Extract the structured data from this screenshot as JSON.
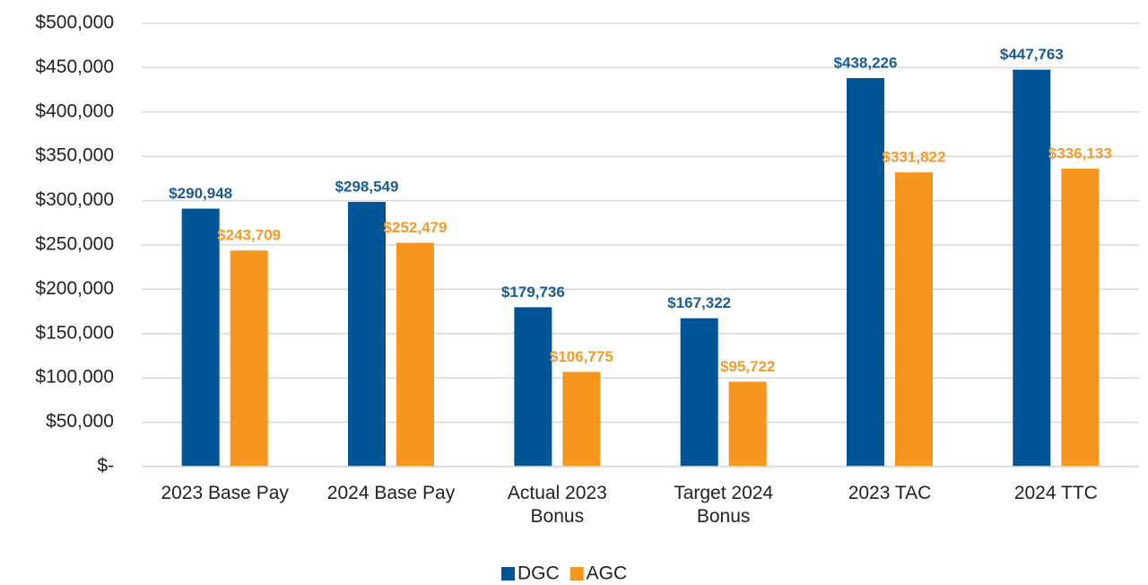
{
  "chart_data": {
    "type": "bar",
    "categories": [
      "2023 Base Pay",
      "2024 Base Pay",
      "Actual 2023 Bonus",
      "Target 2024 Bonus",
      "2023 TAC",
      "2024 TTC"
    ],
    "series": [
      {
        "name": "DGC",
        "color": "#005596",
        "label_color": "#1a5b96",
        "values": [
          290948,
          298549,
          179736,
          167322,
          438226,
          447763
        ],
        "value_labels": [
          "$290,948",
          "$298,549",
          "$179,736",
          "$167,322",
          "$438,226",
          "$447,763"
        ]
      },
      {
        "name": "AGC",
        "color": "#f7961f",
        "label_color": "#f59a2a",
        "values": [
          243709,
          252479,
          106775,
          95722,
          331822,
          336133
        ],
        "value_labels": [
          "$243,709",
          "$252,479",
          "$106,775",
          "$95,722",
          "$331,822",
          "$336,133"
        ]
      }
    ],
    "ylim": [
      0,
      500000
    ],
    "yticks": [
      {
        "value": 0,
        "label": "$-"
      },
      {
        "value": 50000,
        "label": "$50,000"
      },
      {
        "value": 100000,
        "label": "$100,000"
      },
      {
        "value": 150000,
        "label": "$150,000"
      },
      {
        "value": 200000,
        "label": "$200,000"
      },
      {
        "value": 250000,
        "label": "$250,000"
      },
      {
        "value": 300000,
        "label": "$300,000"
      },
      {
        "value": 350000,
        "label": "$350,000"
      },
      {
        "value": 400000,
        "label": "$400,000"
      },
      {
        "value": 450000,
        "label": "$450,000"
      },
      {
        "value": 500000,
        "label": "$500,000"
      }
    ],
    "grid": true,
    "legend": "bottom"
  }
}
